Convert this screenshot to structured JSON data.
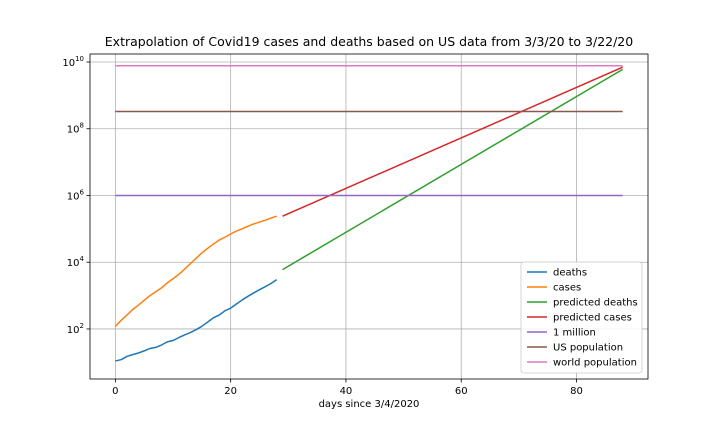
{
  "chart_data": {
    "type": "line",
    "title": "Extrapolation of Covid19 cases and deaths based on US data from 3/3/20 to 3/22/20",
    "xlabel": "days since 3/4/2020",
    "ylabel": "",
    "y_scale": "log",
    "xlim": [
      -4.4,
      92.4
    ],
    "ylim_log10": [
      0.5,
      10.24
    ],
    "x_ticks": [
      0,
      20,
      40,
      60,
      80
    ],
    "y_ticks": [
      {
        "value": 100,
        "base": "10",
        "exp": "2"
      },
      {
        "value": 10000,
        "base": "10",
        "exp": "4"
      },
      {
        "value": 1000000,
        "base": "10",
        "exp": "6"
      },
      {
        "value": 100000000,
        "base": "10",
        "exp": "8"
      },
      {
        "value": 10000000000,
        "base": "10",
        "exp": "10"
      }
    ],
    "grid": true,
    "legend_position": "bottom-right",
    "series": [
      {
        "name": "deaths",
        "color": "#1f77b4",
        "x": [
          0,
          1,
          2,
          3,
          4,
          5,
          6,
          7,
          8,
          9,
          10,
          11,
          12,
          13,
          14,
          15,
          16,
          17,
          18,
          19,
          20,
          21,
          22,
          23,
          24,
          25,
          26,
          27,
          28
        ],
        "y": [
          11,
          12,
          15,
          17,
          19,
          22,
          26,
          28,
          33,
          41,
          45,
          55,
          66,
          78,
          95,
          120,
          160,
          215,
          260,
          350,
          420,
          560,
          740,
          950,
          1200,
          1500,
          1850,
          2300,
          3000
        ]
      },
      {
        "name": "cases",
        "color": "#ff7f0e",
        "x": [
          0,
          1,
          2,
          3,
          4,
          5,
          6,
          7,
          8,
          9,
          10,
          11,
          12,
          13,
          14,
          15,
          16,
          17,
          18,
          19,
          20,
          21,
          22,
          23,
          24,
          25,
          26,
          27,
          28
        ],
        "y": [
          120,
          180,
          260,
          380,
          520,
          720,
          1000,
          1300,
          1700,
          2400,
          3200,
          4300,
          6200,
          9000,
          13000,
          19000,
          26000,
          35000,
          46000,
          56000,
          70000,
          86000,
          100000,
          120000,
          140000,
          160000,
          180000,
          210000,
          240000
        ]
      },
      {
        "name": "predicted deaths",
        "color": "#2ca02c",
        "x": [
          29,
          88
        ],
        "y": [
          6000,
          6000000000
        ]
      },
      {
        "name": "predicted cases",
        "color": "#d62728",
        "x": [
          29,
          88
        ],
        "y": [
          240000,
          7000000000
        ]
      },
      {
        "name": "1 million",
        "color": "#9467bd",
        "x": [
          0,
          88
        ],
        "y": [
          1000000,
          1000000
        ]
      },
      {
        "name": "US population",
        "color": "#8c564b",
        "x": [
          0,
          88
        ],
        "y": [
          330000000,
          330000000
        ]
      },
      {
        "name": "world population",
        "color": "#e377c2",
        "x": [
          0,
          88
        ],
        "y": [
          7700000000,
          7700000000
        ]
      }
    ]
  }
}
